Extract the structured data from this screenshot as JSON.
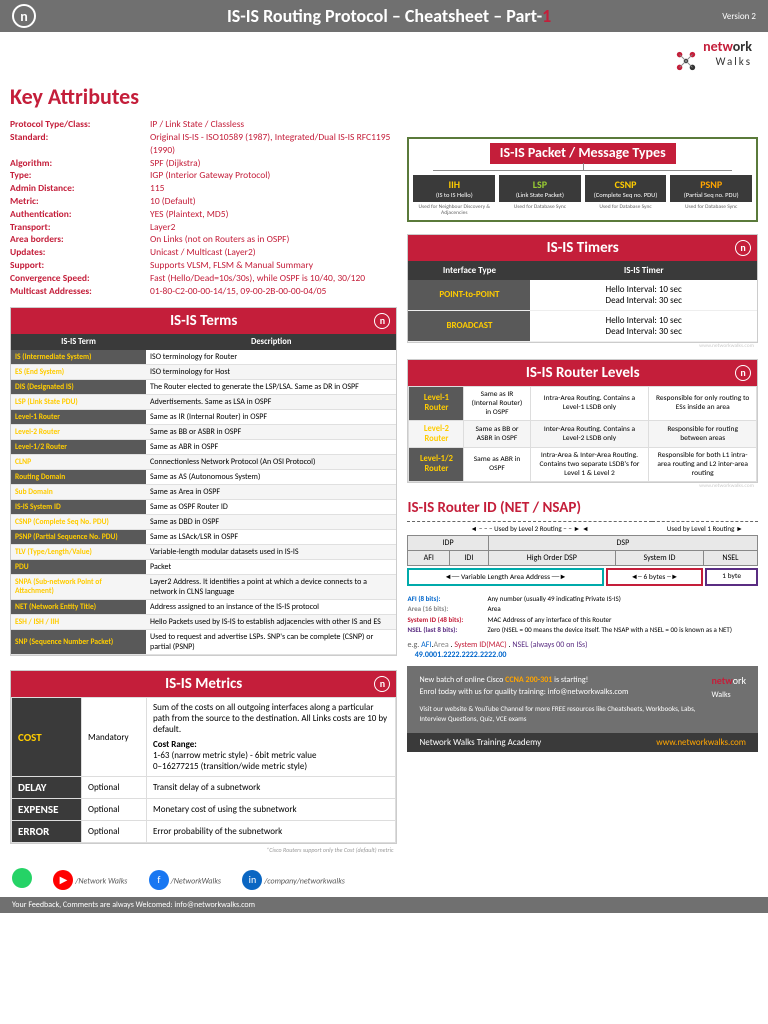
{
  "header": {
    "title_pre": "IS-IS Routing Protocol – Cheatsheet – Part-",
    "part": "1",
    "version": "Version 2",
    "logo": "n"
  },
  "brand": {
    "net": "netw",
    "ork": "ork",
    "walks": "Walks"
  },
  "key_attrs_title": "Key Attributes",
  "attrs": [
    {
      "l": "Protocol Type/Class:",
      "v": "IP / Link State / Classless"
    },
    {
      "l": "Standard:",
      "v": "Original IS-IS - ISO10589 (1987), Integrated/Dual IS-IS RFC1195 (1990)"
    },
    {
      "l": "Algorithm:",
      "v": "SPF (Dijkstra)"
    },
    {
      "l": "Type:",
      "v": "IGP (Interior Gateway Protocol)"
    },
    {
      "l": "Admin Distance:",
      "v": "115"
    },
    {
      "l": "Metric:",
      "v": "10 (Default)"
    },
    {
      "l": "Authentication:",
      "v": "YES (Plaintext, MD5)"
    },
    {
      "l": "Transport:",
      "v": "Layer2"
    },
    {
      "l": "Area borders:",
      "v": "On Links (not on Routers as in OSPF)"
    },
    {
      "l": "Updates:",
      "v": "Unicast / Multicast (Layer2)"
    },
    {
      "l": "Support:",
      "v": "Supports VLSM, FLSM & Manual Summary"
    },
    {
      "l": "Convergence Speed:",
      "v": "Fast (Hello/Dead=10s/30s), while OSPF is 10/40, 30/120"
    },
    {
      "l": "Multicast Addresses:",
      "v": "01-80-C2-00-00-14/15, 09-00-2B-00-00-04/05"
    }
  ],
  "terms": {
    "title": "IS-IS Terms",
    "headers": [
      "IS-IS Term",
      "Description"
    ],
    "rows": [
      [
        "IS (Intermediate System)",
        "ISO terminology for Router"
      ],
      [
        "ES (End System)",
        "ISO terminology for Host"
      ],
      [
        "DIS (Designated IS)",
        "The Router elected to generate the LSP/LSA. Same as DR in OSPF"
      ],
      [
        "LSP (Link State PDU)",
        "Advertisements. Same as LSA in OSPF"
      ],
      [
        "Level-1 Router",
        "Same as IR (Internal Router) in OSPF"
      ],
      [
        "Level-2 Router",
        "Same as BB or ASBR in OSPF"
      ],
      [
        "Level-1/2 Router",
        "Same as ABR in OSPF"
      ],
      [
        "CLNP",
        "Connectionless Network Protocol (An OSI Protocol)"
      ],
      [
        "Routing Domain",
        "Same as AS (Autonomous System)"
      ],
      [
        "Sub Domain",
        "Same as Area in OSPF"
      ],
      [
        "IS-IS System ID",
        "Same as OSPF Router ID"
      ],
      [
        "CSNP (Complete Seq No. PDU)",
        "Same as DBD in OSPF"
      ],
      [
        "PSNP (Partial Sequence No. PDU)",
        "Same as LSAck/LSR in OSPF"
      ],
      [
        "TLV (Type/Length/Value)",
        "Variable-length modular datasets used in IS-IS"
      ],
      [
        "PDU",
        "Packet"
      ],
      [
        "SNPA (Sub-network Point of Attachment)",
        "Layer2 Address. It identifies a point at which a device connects to a network in CLNS language"
      ],
      [
        "NET (Network Entity Title)",
        "Address assigned to an instance of the IS-IS protocol"
      ],
      [
        "ESH / ISH / IIH",
        "Hello Packets used by IS-IS to establish adjacencies with other IS and ES"
      ],
      [
        "SNP (Sequence Number Packet)",
        "Used to request and advertise LSPs. SNP's can be complete (CSNP) or partial (PSNP)"
      ]
    ]
  },
  "metrics": {
    "title": "IS-IS Metrics",
    "rows": [
      {
        "n": "COST",
        "t": "Mandatory",
        "d": "Sum of the costs on all outgoing interfaces along a particular path from the source to the destination. All Links costs are 10 by default.",
        "range_label": "Cost Range:",
        "range": "1-63 (narrow metric style) - 6bit metric value\n0–16277215 (transition/wide metric style)"
      },
      {
        "n": "DELAY",
        "t": "Optional",
        "d": "Transit delay of a subnetwork"
      },
      {
        "n": "EXPENSE",
        "t": "Optional",
        "d": "Monetary cost of using the subnetwork"
      },
      {
        "n": "ERROR",
        "t": "Optional",
        "d": "Error probability of the subnetwork"
      }
    ],
    "note": "*Cisco Routers support only the Cost (default) metric"
  },
  "packets": {
    "title": "IS-IS Packet / Message Types",
    "items": [
      {
        "n": "IIH",
        "s": "(IS to IS Hello)",
        "c": "y",
        "d": "Used for Neighbour Discovery & Adjacencies"
      },
      {
        "n": "LSP",
        "s": "(Link State Packet)",
        "c": "g",
        "d": "Used for Database Sync"
      },
      {
        "n": "CSNP",
        "s": "(Complete Seq no. PDU)",
        "c": "y",
        "d": "Used for Database Sync"
      },
      {
        "n": "PSNP",
        "s": "(Partial Seq no. PDU)",
        "c": "o",
        "d": "Used for Database Sync"
      }
    ]
  },
  "timers": {
    "title": "IS-IS Timers",
    "headers": [
      "Interface Type",
      "IS-IS Timer"
    ],
    "rows": [
      [
        "POINT-to-POINT",
        "Hello Interval: 10 sec\nDead Interval: 30 sec"
      ],
      [
        "BROADCAST",
        "Hello Interval: 10 sec\nDead Interval: 30 sec"
      ]
    ]
  },
  "levels": {
    "title": "IS-IS Router Levels",
    "rows": [
      [
        "Level-1 Router",
        "Same as IR (Internal Router) in OSPF",
        "Intra-Area Routing. Contains a Level-1 LSDB only",
        "Responsible for only routing to ESs inside an area"
      ],
      [
        "Level-2 Router",
        "Same as BB or ASBR in OSPF",
        "Inter-Area Routing. Contains a Level-2 LSDB only",
        "Responsible for routing between areas"
      ],
      [
        "Level-1/2 Router",
        "Same as ABR in OSPF",
        "Intra-Area & Inter-Area Routing. Contains two separate LSDB's for Level 1 & Level 2",
        "Responsible for both L1 intra-area routing and L2 inter-area routing"
      ]
    ]
  },
  "routerid": {
    "title": "IS-IS Router ID (NET / NSAP)",
    "top": [
      "Used by Level 2 Routing",
      "Used by Level 1 Routing"
    ],
    "row1": [
      "IDP",
      "DSP"
    ],
    "row2": [
      "AFI",
      "IDI",
      "High Order DSP",
      "System ID",
      "NSEL"
    ],
    "bottom": [
      "Variable Length Area Address",
      "6 bytes",
      "1 byte"
    ],
    "fields": [
      {
        "c": "afi",
        "n": "AFI (8 bits):",
        "d": "Any number (usually 49 indicating Private IS-IS)"
      },
      {
        "c": "area",
        "n": "Area (16 bits):",
        "d": "Area"
      },
      {
        "c": "sysid",
        "n": "System ID (48 bits):",
        "d": "MAC Address of any interface of this Router"
      },
      {
        "c": "nsel",
        "n": "NSEL (last 8 bits):",
        "d": "Zero (NSEL = 00 means the device itself. The NSAP with a NSEL = 00 is known as a NET)"
      }
    ],
    "eg_label": "e.g.",
    "eg_format": "AFI.Area . System ID(MAC) . NSEL (always 00 on ISs)",
    "eg_value": "49.0001.2222.2222.2222.00"
  },
  "promo": {
    "line1_a": "New batch of online Cisco ",
    "ccna": "CCNA 200-301",
    "line1_b": " is starting!",
    "line2": "Enrol today with us for quality training: info@networkwalks.com",
    "line3": "Visit our website & YouTube Channel for more FREE resources like Cheatsheets, Workbooks, Labs, Interview Questions, Quiz, VCE exams"
  },
  "footer": {
    "academy": "Network Walks Training Academy",
    "url": "www.networkwalks.com"
  },
  "social": [
    {
      "c": "#25d366",
      "t": "",
      "label": ""
    },
    {
      "c": "#ff0000",
      "t": "▶",
      "label": "/Network Walks"
    },
    {
      "c": "#1877f2",
      "t": "f",
      "label": "/NetworkWalks"
    },
    {
      "c": "#0a66c2",
      "t": "in",
      "label": "/company/networkwalks"
    }
  ],
  "feedback": "Your Feedback, Comments are always Welcomed: info@networkwalks.com",
  "watermark": "www.networkwalks.com"
}
